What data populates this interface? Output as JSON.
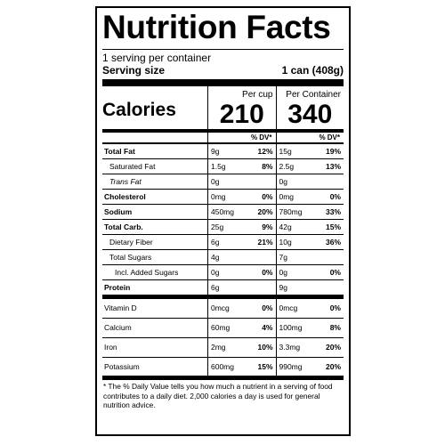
{
  "title": "Nutrition Facts",
  "servings_per_container": "1 serving per container",
  "serving_size_label": "Serving size",
  "serving_size_value": "1 can (408g)",
  "calories": {
    "label": "Calories",
    "col1_header": "Per cup",
    "col2_header": "Per Container",
    "per_cup": "210",
    "per_container": "340"
  },
  "dv_header": "% DV*",
  "nutrients": [
    {
      "name": "Total Fat",
      "a1": "9g",
      "p1": "12%",
      "a2": "15g",
      "p2": "19%"
    },
    {
      "name": "Saturated Fat",
      "a1": "1.5g",
      "p1": "8%",
      "a2": "2.5g",
      "p2": "13%"
    },
    {
      "name": "Trans Fat",
      "a1": "0g",
      "p1": "",
      "a2": "0g",
      "p2": ""
    },
    {
      "name": "Cholesterol",
      "a1": "0mg",
      "p1": "0%",
      "a2": "0mg",
      "p2": "0%"
    },
    {
      "name": "Sodium",
      "a1": "450mg",
      "p1": "20%",
      "a2": "780mg",
      "p2": "33%"
    },
    {
      "name": "Total Carb.",
      "a1": "25g",
      "p1": "9%",
      "a2": "42g",
      "p2": "15%"
    },
    {
      "name": "Dietary Fiber",
      "a1": "6g",
      "p1": "21%",
      "a2": "10g",
      "p2": "36%"
    },
    {
      "name": "Total Sugars",
      "a1": "4g",
      "p1": "",
      "a2": "7g",
      "p2": ""
    },
    {
      "name": "Incl. Added Sugars",
      "a1": "0g",
      "p1": "0%",
      "a2": "0g",
      "p2": "0%"
    },
    {
      "name": "Protein",
      "a1": "6g",
      "p1": "",
      "a2": "9g",
      "p2": ""
    }
  ],
  "vitamins": [
    {
      "name": "Vitamin D",
      "a1": "0mcg",
      "p1": "0%",
      "a2": "0mcg",
      "p2": "0%"
    },
    {
      "name": "Calcium",
      "a1": "60mg",
      "p1": "4%",
      "a2": "100mg",
      "p2": "8%"
    },
    {
      "name": "Iron",
      "a1": "2mg",
      "p1": "10%",
      "a2": "3.3mg",
      "p2": "20%"
    },
    {
      "name": "Potassium",
      "a1": "600mg",
      "p1": "15%",
      "a2": "990mg",
      "p2": "20%"
    }
  ],
  "footnote": "* The % Daily Value tells you how much a nutrient in a serving of food contributes to a daily diet. 2,000 calories a day is used for general nutrition advice."
}
